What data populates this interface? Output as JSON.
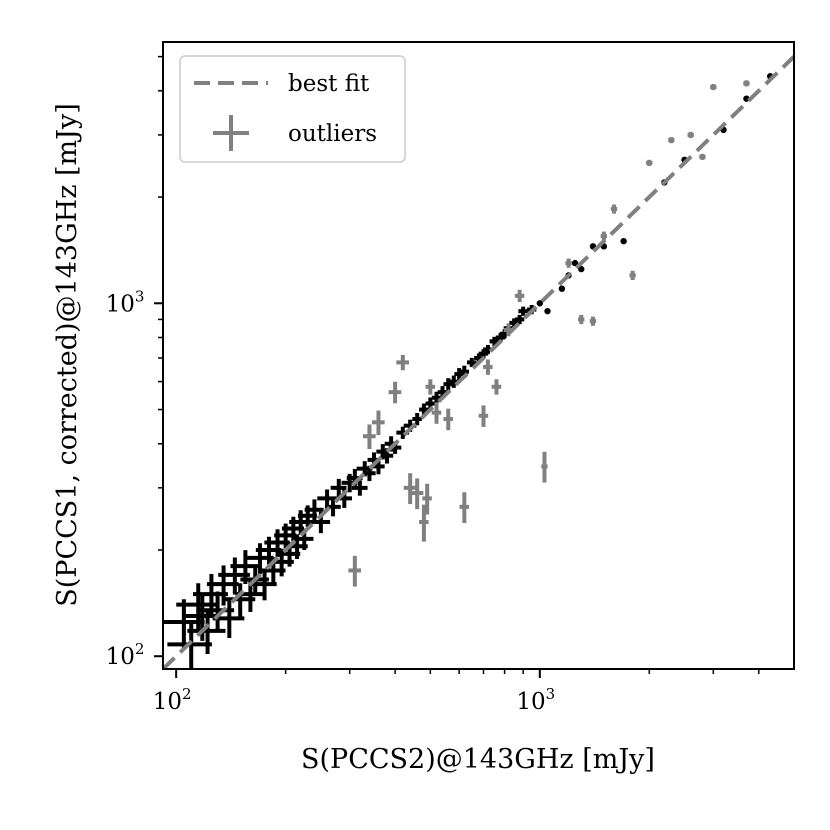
{
  "chart_data": {
    "type": "scatter",
    "title": "",
    "xlabel": "S(PCCS2)@143GHz [mJy]",
    "ylabel": "S(PCCS1, corrected)@143GHz [mJy]",
    "xscale": "log",
    "yscale": "log",
    "xlim": [
      92,
      5000
    ],
    "ylim": [
      92,
      5500
    ],
    "x_ticks": [
      {
        "value": 100,
        "base": "10",
        "exponent": "2"
      },
      {
        "value": 1000,
        "base": "10",
        "exponent": "3"
      }
    ],
    "y_ticks": [
      {
        "value": 100,
        "base": "10",
        "exponent": "2"
      },
      {
        "value": 1000,
        "base": "10",
        "exponent": "3"
      }
    ],
    "grid": false,
    "legend": {
      "placement": "upper-left",
      "entries": [
        {
          "label": "best fit",
          "marker": "dashed-line",
          "color": "#808080"
        },
        {
          "label": "outliers",
          "marker": "errorbar-cross",
          "color": "#808080"
        }
      ]
    },
    "series": [
      {
        "role": "best-fit-line",
        "style": "dashed",
        "color": "#808080",
        "x": [
          92,
          5000
        ],
        "y": [
          92,
          5000
        ]
      },
      {
        "role": "sources",
        "color": "#000000",
        "marker": "errorbar-cross",
        "x": [
          105,
          110,
          115,
          118,
          122,
          125,
          130,
          135,
          140,
          145,
          150,
          155,
          160,
          165,
          170,
          175,
          180,
          185,
          190,
          195,
          200,
          205,
          210,
          215,
          220,
          225,
          230,
          240,
          250,
          260,
          270,
          280,
          290,
          300,
          310,
          320,
          330,
          340,
          350,
          360,
          370,
          380,
          390,
          400,
          420,
          440,
          460,
          480,
          500,
          520,
          540,
          560,
          580,
          600,
          620,
          650,
          680,
          700,
          720,
          750,
          780,
          800,
          820,
          850,
          880,
          900,
          950
        ],
        "y": [
          125,
          108,
          140,
          130,
          118,
          150,
          135,
          160,
          128,
          170,
          145,
          180,
          150,
          165,
          190,
          160,
          200,
          175,
          210,
          185,
          220,
          195,
          230,
          205,
          240,
          215,
          250,
          260,
          240,
          280,
          265,
          300,
          280,
          310,
          320,
          300,
          340,
          330,
          360,
          345,
          380,
          370,
          400,
          390,
          430,
          450,
          470,
          500,
          520,
          540,
          560,
          590,
          600,
          630,
          640,
          680,
          700,
          720,
          740,
          780,
          800,
          820,
          850,
          880,
          900,
          950,
          960
        ],
        "xerr_frac": [
          0.14,
          0.14,
          0.13,
          0.12,
          0.12,
          0.11,
          0.11,
          0.1,
          0.1,
          0.1,
          0.1,
          0.09,
          0.09,
          0.09,
          0.09,
          0.08,
          0.08,
          0.08,
          0.08,
          0.08,
          0.07,
          0.07,
          0.07,
          0.07,
          0.07,
          0.06,
          0.06,
          0.06,
          0.06,
          0.06,
          0.05,
          0.05,
          0.05,
          0.05,
          0.05,
          0.05,
          0.05,
          0.04,
          0.04,
          0.04,
          0.04,
          0.04,
          0.04,
          0.04,
          0.04,
          0.04,
          0.03,
          0.03,
          0.03,
          0.03,
          0.03,
          0.03,
          0.03,
          0.03,
          0.03,
          0.03,
          0.03,
          0.03,
          0.03,
          0.03,
          0.03,
          0.03,
          0.03,
          0.03,
          0.03,
          0.03,
          0.03
        ],
        "yerr_frac": [
          0.16,
          0.16,
          0.15,
          0.15,
          0.14,
          0.14,
          0.13,
          0.13,
          0.12,
          0.12,
          0.11,
          0.11,
          0.11,
          0.1,
          0.1,
          0.1,
          0.09,
          0.09,
          0.09,
          0.09,
          0.08,
          0.08,
          0.08,
          0.08,
          0.08,
          0.07,
          0.07,
          0.07,
          0.07,
          0.06,
          0.06,
          0.06,
          0.06,
          0.06,
          0.06,
          0.05,
          0.05,
          0.05,
          0.05,
          0.05,
          0.05,
          0.05,
          0.05,
          0.04,
          0.04,
          0.04,
          0.04,
          0.04,
          0.04,
          0.04,
          0.04,
          0.04,
          0.04,
          0.04,
          0.04,
          0.03,
          0.03,
          0.03,
          0.03,
          0.03,
          0.03,
          0.03,
          0.03,
          0.03,
          0.03,
          0.03,
          0.03
        ]
      },
      {
        "role": "bright-sources",
        "color": "#000000",
        "marker": "dot",
        "x": [
          1000,
          1050,
          1150,
          1200,
          1250,
          1300,
          1400,
          1500,
          1700,
          2200,
          2500,
          3200,
          3700,
          4300
        ],
        "y": [
          1000,
          950,
          1100,
          1200,
          1300,
          1250,
          1450,
          1450,
          1500,
          2200,
          2550,
          3100,
          3800,
          4400
        ]
      },
      {
        "role": "outliers",
        "color": "#808080",
        "marker": "errorbar-cross",
        "x": [
          310,
          340,
          360,
          400,
          420,
          440,
          460,
          480,
          490,
          500,
          520,
          560,
          620,
          700,
          720,
          760,
          820,
          880,
          1030,
          1200,
          1300,
          1400,
          1500,
          1600,
          1800,
          2000,
          2300,
          2600,
          2800,
          3000,
          3700
        ],
        "y": [
          175,
          420,
          460,
          560,
          680,
          300,
          290,
          240,
          280,
          580,
          490,
          470,
          265,
          480,
          660,
          580,
          840,
          1050,
          345,
          1300,
          900,
          890,
          1550,
          1850,
          1200,
          2500,
          2900,
          3000,
          2600,
          4100,
          4200
        ],
        "xerr_frac": [
          0.04,
          0.04,
          0.04,
          0.04,
          0.04,
          0.04,
          0.04,
          0.03,
          0.03,
          0.03,
          0.03,
          0.03,
          0.03,
          0.03,
          0.03,
          0.03,
          0.03,
          0.03,
          0.02,
          0.02,
          0.02,
          0.02,
          0.02,
          0.02,
          0.02,
          0.02,
          0.02,
          0.02,
          0.02,
          0.02,
          0.02
        ],
        "yerr_frac": [
          0.1,
          0.08,
          0.08,
          0.07,
          0.05,
          0.1,
          0.1,
          0.12,
          0.1,
          0.05,
          0.07,
          0.07,
          0.1,
          0.07,
          0.05,
          0.05,
          0.04,
          0.04,
          0.1,
          0.03,
          0.03,
          0.03,
          0.03,
          0.03,
          0.03,
          0.02,
          0.02,
          0.02,
          0.02,
          0.02,
          0.02
        ]
      }
    ]
  }
}
